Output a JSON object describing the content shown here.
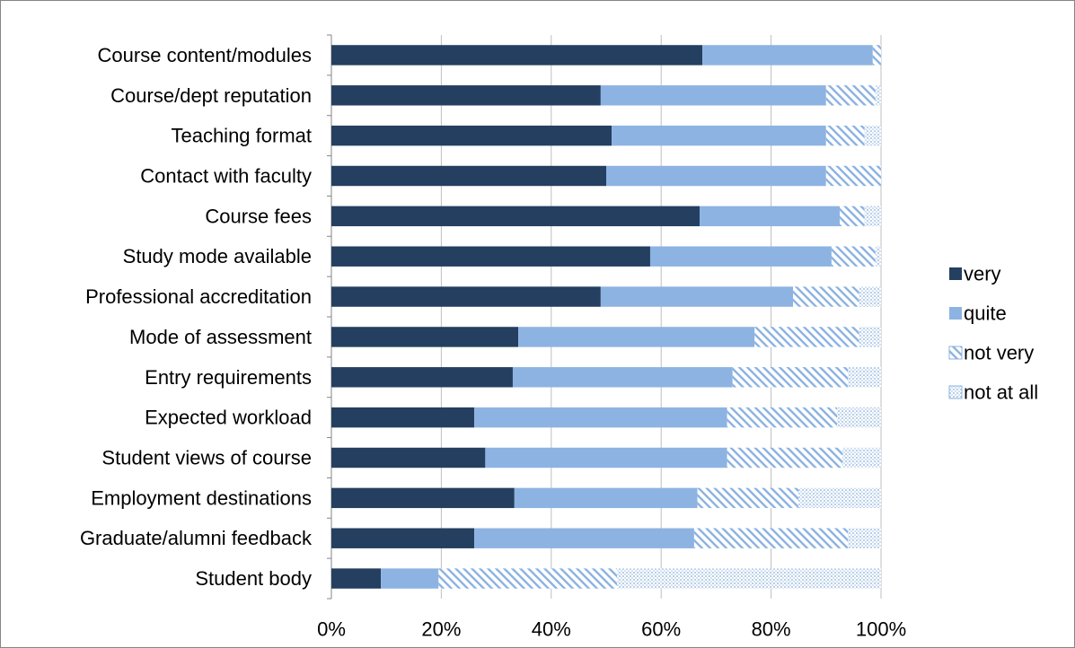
{
  "chart_data": {
    "type": "bar",
    "orientation": "horizontal",
    "stacked": "percent",
    "title": "",
    "xlabel": "",
    "ylabel": "",
    "xlim": [
      0,
      100
    ],
    "x_ticks": [
      "0%",
      "20%",
      "40%",
      "60%",
      "80%",
      "100%"
    ],
    "grid": "vertical gridlines",
    "legend_position": "right",
    "categories": [
      "Course content/modules",
      "Course/dept reputation",
      "Teaching format",
      "Contact with faculty",
      "Course fees",
      "Study mode available",
      "Professional accreditation",
      "Mode of assessment",
      "Entry requirements",
      "Expected workload",
      "Student views of course",
      "Employment destinations",
      "Graduate/alumni feedback",
      "Student body"
    ],
    "series": [
      {
        "name": "very",
        "color": "#243f60",
        "pattern": "solid",
        "values": [
          67.5,
          49,
          51,
          50,
          67,
          58,
          49,
          34,
          33,
          26,
          28,
          33.3,
          26,
          9
        ]
      },
      {
        "name": "quite",
        "color": "#8db3e2",
        "pattern": "solid",
        "values": [
          31,
          41,
          39,
          40,
          25.5,
          33,
          35,
          43,
          40,
          46,
          44,
          33.3,
          40,
          10.5
        ]
      },
      {
        "name": "not very",
        "color": "#8db3e2",
        "pattern": "diagonal-hatch",
        "values": [
          1.5,
          9,
          7,
          10,
          4.5,
          8,
          12,
          19,
          21,
          20,
          21,
          18.4,
          28,
          32.5
        ]
      },
      {
        "name": "not at all",
        "color": "#8db3e2",
        "pattern": "dotted",
        "values": [
          0,
          1,
          3,
          0,
          3,
          1,
          4,
          4,
          6,
          8,
          7,
          15,
          6,
          48
        ]
      }
    ]
  }
}
